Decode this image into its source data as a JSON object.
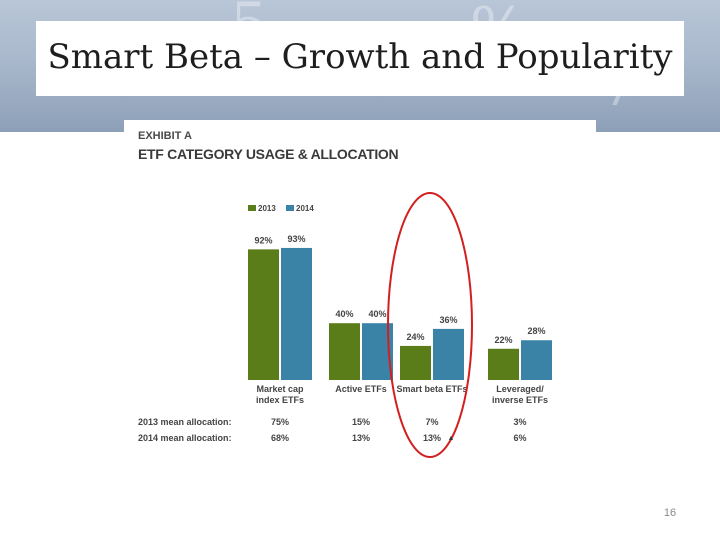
{
  "slide": {
    "title": "Smart Beta – Growth and Popularity",
    "page_number": "16"
  },
  "exhibit": {
    "label": "EXHIBIT A",
    "title": "ETF CATEGORY USAGE & ALLOCATION"
  },
  "colors": {
    "series_2013": "#5a7d1a",
    "series_2014": "#3a82a6",
    "highlight_circle": "#d21f1f"
  },
  "chart_data": {
    "type": "bar",
    "title": "ETF CATEGORY USAGE & ALLOCATION",
    "xlabel": "",
    "ylabel": "",
    "ylim": [
      0,
      100
    ],
    "legend": "top-left",
    "grid": false,
    "categories": [
      [
        "Market cap",
        "index ETFs"
      ],
      [
        "Active ETFs"
      ],
      [
        "Smart beta ETFs"
      ],
      [
        "Leveraged/",
        "inverse ETFs"
      ]
    ],
    "series": [
      {
        "name": "2013",
        "values": [
          92,
          40,
          24,
          22
        ],
        "labels": [
          "92%",
          "40%",
          "24%",
          "22%"
        ]
      },
      {
        "name": "2014",
        "values": [
          93,
          40,
          36,
          28
        ],
        "labels": [
          "93%",
          "40%",
          "36%",
          "28%"
        ]
      }
    ],
    "allocation_rows": [
      {
        "label": "2013 mean allocation:",
        "values": [
          "75%",
          "15%",
          "7%",
          "3%"
        ]
      },
      {
        "label": "2014 mean allocation:",
        "values": [
          "68%",
          "13%",
          "13%",
          "6%"
        ]
      }
    ],
    "annotations": [
      {
        "type": "circle",
        "category_index": 2
      },
      {
        "type": "arrow-up",
        "text": "▲",
        "row": 1,
        "category_index": 2
      }
    ]
  }
}
